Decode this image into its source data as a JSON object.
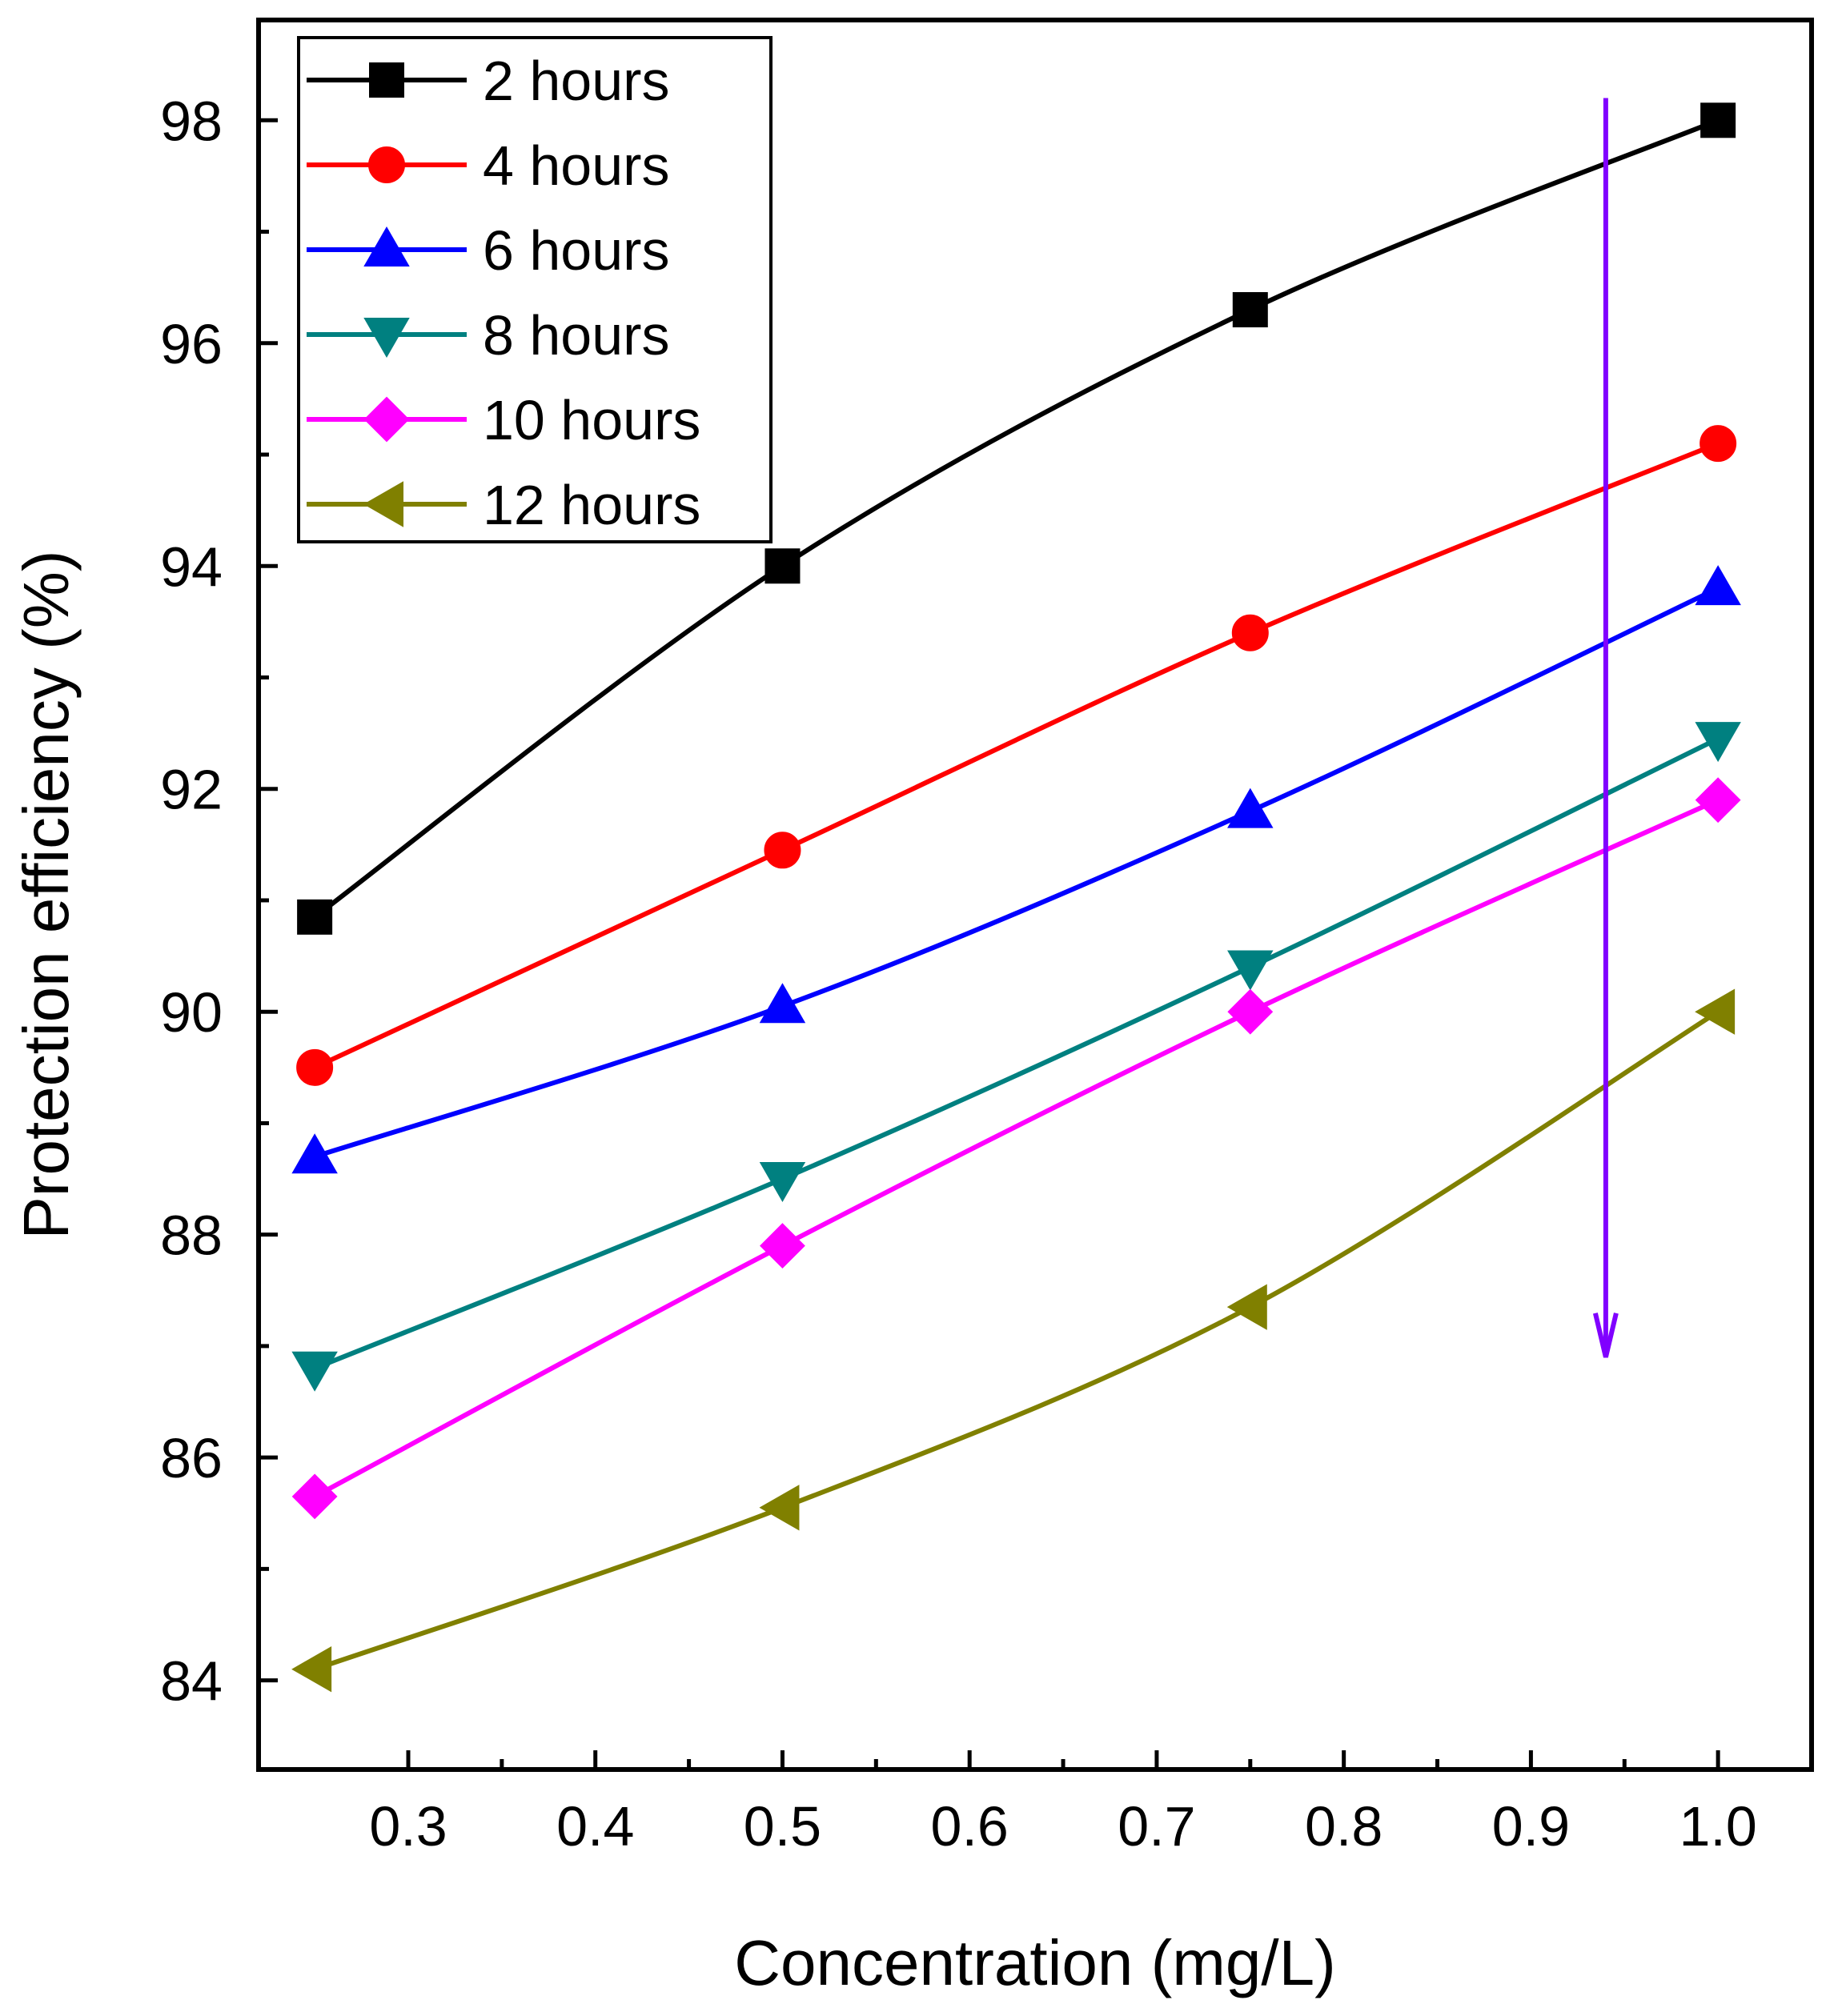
{
  "chart_data": {
    "type": "line",
    "title": "",
    "xlabel": "Concentration (mg/L)",
    "ylabel": "Protection efficiency (%)",
    "xlim": [
      0.22,
      1.05
    ],
    "ylim": [
      83.2,
      98.9
    ],
    "x_ticks": [
      0.3,
      0.4,
      0.5,
      0.6,
      0.7,
      0.8,
      0.9,
      1.0
    ],
    "x_tick_labels": [
      "0.3",
      "0.4",
      "0.5",
      "0.6",
      "0.7",
      "0.8",
      "0.9",
      "1.0"
    ],
    "y_ticks": [
      84,
      86,
      88,
      90,
      92,
      94,
      96,
      98
    ],
    "y_tick_labels": [
      "84",
      "86",
      "88",
      "90",
      "92",
      "94",
      "96",
      "98"
    ],
    "grid": false,
    "legend_position": "top-left",
    "x": [
      0.25,
      0.5,
      0.75,
      1.0
    ],
    "series": [
      {
        "name": "2 hours",
        "color": "#000000",
        "marker": "square",
        "values": [
          90.85,
          94.0,
          96.3,
          98.0
        ]
      },
      {
        "name": "4 hours",
        "color": "#ff0000",
        "marker": "circle",
        "values": [
          89.5,
          91.45,
          93.4,
          95.1
        ]
      },
      {
        "name": "6 hours",
        "color": "#0000ff",
        "marker": "triangle-up",
        "values": [
          88.7,
          90.05,
          91.8,
          93.8
        ]
      },
      {
        "name": "8 hours",
        "color": "#008080",
        "marker": "triangle-down",
        "values": [
          86.8,
          88.5,
          90.4,
          92.45
        ]
      },
      {
        "name": "10 hours",
        "color": "#ff00ff",
        "marker": "diamond",
        "values": [
          85.65,
          87.9,
          90.0,
          91.9
        ]
      },
      {
        "name": "12 hours",
        "color": "#808000",
        "marker": "triangle-left",
        "values": [
          84.1,
          85.55,
          87.35,
          90.0
        ]
      }
    ],
    "annotation_arrow": {
      "color": "#8000ff",
      "x": 0.94,
      "y_start": 98.2,
      "y_end": 86.9,
      "direction": "down"
    }
  }
}
